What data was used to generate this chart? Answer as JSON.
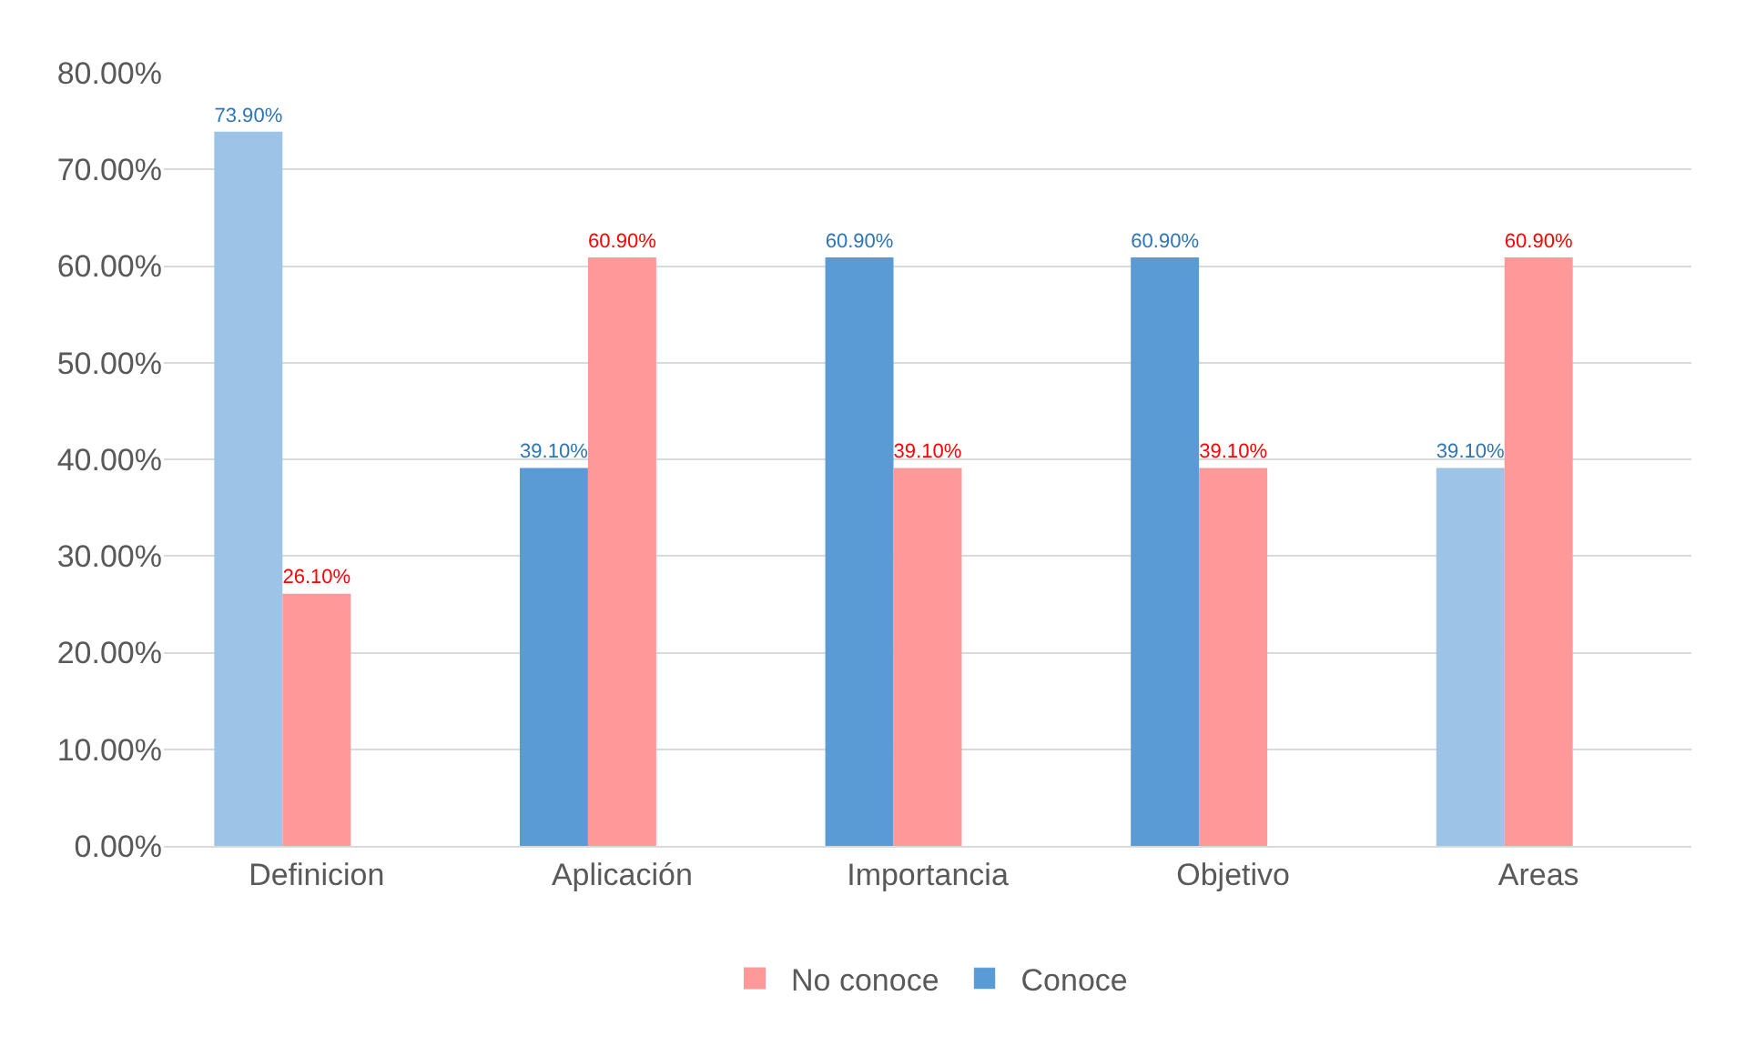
{
  "chart_data": {
    "type": "bar",
    "categories": [
      "Definicion",
      "Aplicación",
      "Importancia",
      "Objetivo",
      "Areas"
    ],
    "series": [
      {
        "name": "Conoce",
        "color": "#5b9bd5",
        "colors": [
          "#9dc3e6",
          "#5b9bd5",
          "#5b9bd5",
          "#5b9bd5",
          "#9dc3e6"
        ],
        "values": [
          73.9,
          39.1,
          60.9,
          60.9,
          39.1
        ],
        "value_labels": [
          "73.90%",
          "39.10%",
          "60.90%",
          "60.90%",
          "39.10%"
        ]
      },
      {
        "name": "No conoce",
        "color": "#ff9999",
        "values": [
          26.1,
          60.9,
          39.1,
          39.1,
          60.9
        ],
        "value_labels": [
          "26.10%",
          "60.90%",
          "39.10%",
          "39.10%",
          "60.90%"
        ]
      }
    ],
    "ylim": [
      0,
      80
    ],
    "yticks": [
      {
        "value": 0,
        "label": "0.00%"
      },
      {
        "value": 10,
        "label": "10.00%"
      },
      {
        "value": 20,
        "label": "20.00%"
      },
      {
        "value": 30,
        "label": "30.00%"
      },
      {
        "value": 40,
        "label": "40.00%"
      },
      {
        "value": 50,
        "label": "50.00%"
      },
      {
        "value": 60,
        "label": "60.00%"
      },
      {
        "value": 70,
        "label": "70.00%"
      },
      {
        "value": 80,
        "label": "80.00%"
      }
    ],
    "grid": "y",
    "legend": "bottom"
  }
}
